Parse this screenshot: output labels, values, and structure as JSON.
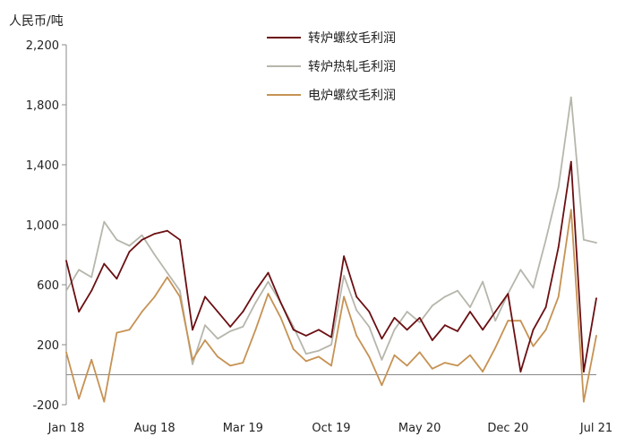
{
  "chart_data": {
    "type": "line",
    "unit_label": "人民币/吨",
    "title": "",
    "xlabel": "",
    "ylabel": "人民币/吨",
    "ylim": [
      -200,
      2200
    ],
    "yticks": [
      -200,
      200,
      600,
      1000,
      1400,
      1800,
      2200
    ],
    "ytick_labels": [
      "-200",
      "200",
      "600",
      "1,000",
      "1,400",
      "1,800",
      "2,200"
    ],
    "x_range": [
      "2018-01",
      "2021-07"
    ],
    "xtick_labels": [
      "Jan 18",
      "Aug 18",
      "Mar 19",
      "Oct 19",
      "May 20",
      "Dec 20",
      "Jul 21"
    ],
    "grid": false,
    "legend_position": "top-center",
    "series": [
      {
        "name": "转炉螺纹毛利润",
        "color": "#6b0f12",
        "points": [
          [
            "2018-01",
            760
          ],
          [
            "2018-02",
            420
          ],
          [
            "2018-03",
            560
          ],
          [
            "2018-04",
            740
          ],
          [
            "2018-05",
            640
          ],
          [
            "2018-06",
            820
          ],
          [
            "2018-07",
            900
          ],
          [
            "2018-08",
            940
          ],
          [
            "2018-09",
            960
          ],
          [
            "2018-10",
            900
          ],
          [
            "2018-11",
            300
          ],
          [
            "2018-12",
            520
          ],
          [
            "2019-01",
            420
          ],
          [
            "2019-02",
            320
          ],
          [
            "2019-03",
            420
          ],
          [
            "2019-04",
            560
          ],
          [
            "2019-05",
            680
          ],
          [
            "2019-06",
            480
          ],
          [
            "2019-07",
            300
          ],
          [
            "2019-08",
            260
          ],
          [
            "2019-09",
            300
          ],
          [
            "2019-10",
            250
          ],
          [
            "2019-11",
            790
          ],
          [
            "2019-12",
            520
          ],
          [
            "2020-01",
            420
          ],
          [
            "2020-02",
            240
          ],
          [
            "2020-03",
            380
          ],
          [
            "2020-04",
            300
          ],
          [
            "2020-05",
            380
          ],
          [
            "2020-06",
            230
          ],
          [
            "2020-07",
            330
          ],
          [
            "2020-08",
            290
          ],
          [
            "2020-09",
            420
          ],
          [
            "2020-10",
            300
          ],
          [
            "2020-11",
            420
          ],
          [
            "2020-12",
            540
          ],
          [
            "2021-01",
            20
          ],
          [
            "2021-02",
            300
          ],
          [
            "2021-03",
            450
          ],
          [
            "2021-04",
            850
          ],
          [
            "2021-05",
            1420
          ],
          [
            "2021-06",
            20
          ],
          [
            "2021-07",
            510
          ]
        ]
      },
      {
        "name": "转炉热轧毛利润",
        "color": "#b6b6ac",
        "points": [
          [
            "2018-01",
            560
          ],
          [
            "2018-02",
            700
          ],
          [
            "2018-03",
            650
          ],
          [
            "2018-04",
            1020
          ],
          [
            "2018-05",
            900
          ],
          [
            "2018-06",
            860
          ],
          [
            "2018-07",
            930
          ],
          [
            "2018-08",
            800
          ],
          [
            "2018-09",
            680
          ],
          [
            "2018-10",
            560
          ],
          [
            "2018-11",
            70
          ],
          [
            "2018-12",
            330
          ],
          [
            "2019-01",
            240
          ],
          [
            "2019-02",
            290
          ],
          [
            "2019-03",
            320
          ],
          [
            "2019-04",
            480
          ],
          [
            "2019-05",
            620
          ],
          [
            "2019-06",
            480
          ],
          [
            "2019-07",
            320
          ],
          [
            "2019-08",
            140
          ],
          [
            "2019-09",
            160
          ],
          [
            "2019-10",
            200
          ],
          [
            "2019-11",
            660
          ],
          [
            "2019-12",
            430
          ],
          [
            "2020-01",
            320
          ],
          [
            "2020-02",
            100
          ],
          [
            "2020-03",
            300
          ],
          [
            "2020-04",
            420
          ],
          [
            "2020-05",
            350
          ],
          [
            "2020-06",
            460
          ],
          [
            "2020-07",
            520
          ],
          [
            "2020-08",
            560
          ],
          [
            "2020-09",
            450
          ],
          [
            "2020-10",
            620
          ],
          [
            "2020-11",
            360
          ],
          [
            "2020-12",
            540
          ],
          [
            "2021-01",
            700
          ],
          [
            "2021-02",
            580
          ],
          [
            "2021-03",
            900
          ],
          [
            "2021-04",
            1250
          ],
          [
            "2021-05",
            1850
          ],
          [
            "2021-06",
            900
          ],
          [
            "2021-07",
            880
          ]
        ]
      },
      {
        "name": "电炉螺纹毛利润",
        "color": "#c69253",
        "points": [
          [
            "2018-01",
            150
          ],
          [
            "2018-02",
            -160
          ],
          [
            "2018-03",
            100
          ],
          [
            "2018-04",
            -180
          ],
          [
            "2018-05",
            280
          ],
          [
            "2018-06",
            300
          ],
          [
            "2018-07",
            420
          ],
          [
            "2018-08",
            520
          ],
          [
            "2018-09",
            650
          ],
          [
            "2018-10",
            520
          ],
          [
            "2018-11",
            100
          ],
          [
            "2018-12",
            230
          ],
          [
            "2019-01",
            120
          ],
          [
            "2019-02",
            60
          ],
          [
            "2019-03",
            80
          ],
          [
            "2019-04",
            300
          ],
          [
            "2019-05",
            540
          ],
          [
            "2019-06",
            380
          ],
          [
            "2019-07",
            170
          ],
          [
            "2019-08",
            90
          ],
          [
            "2019-09",
            120
          ],
          [
            "2019-10",
            60
          ],
          [
            "2019-11",
            520
          ],
          [
            "2019-12",
            260
          ],
          [
            "2020-01",
            120
          ],
          [
            "2020-02",
            -70
          ],
          [
            "2020-03",
            130
          ],
          [
            "2020-04",
            60
          ],
          [
            "2020-05",
            150
          ],
          [
            "2020-06",
            40
          ],
          [
            "2020-07",
            80
          ],
          [
            "2020-08",
            60
          ],
          [
            "2020-09",
            130
          ],
          [
            "2020-10",
            20
          ],
          [
            "2020-11",
            180
          ],
          [
            "2020-12",
            360
          ],
          [
            "2021-01",
            360
          ],
          [
            "2021-02",
            190
          ],
          [
            "2021-03",
            300
          ],
          [
            "2021-04",
            520
          ],
          [
            "2021-05",
            1100
          ],
          [
            "2021-06",
            -180
          ],
          [
            "2021-07",
            260
          ]
        ]
      }
    ]
  }
}
